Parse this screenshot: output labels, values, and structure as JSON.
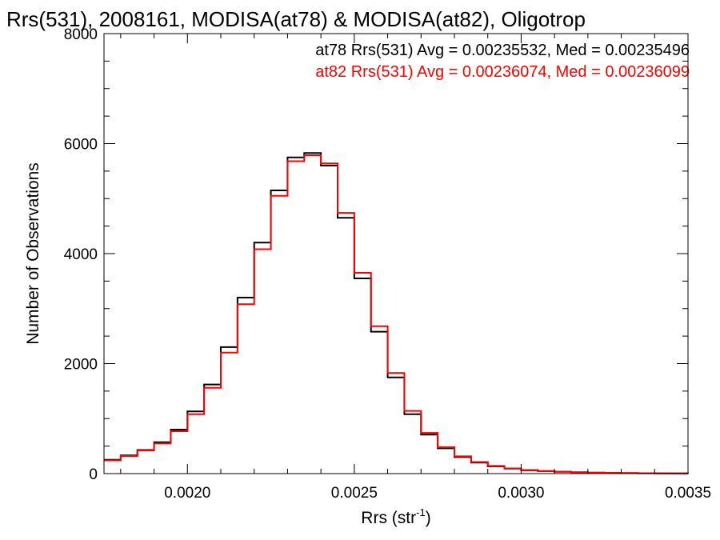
{
  "chart_data": {
    "type": "line",
    "title": "Rrs(531), 2008161, MODISA(at78) & MODISA(at82), Oligotrop",
    "xlabel": "Rrs (str",
    "xlabel_sup": "-1",
    "xlabel_close": ")",
    "ylabel": "Number of Observations",
    "xlim": [
      0.00175,
      0.0035
    ],
    "ylim": [
      0,
      8000
    ],
    "x_ticks": [
      0.002,
      0.0025,
      0.003,
      0.0035
    ],
    "x_tick_labels": [
      "0.0020",
      "0.0025",
      "0.0030",
      "0.0035"
    ],
    "y_ticks": [
      0,
      2000,
      4000,
      6000,
      8000
    ],
    "y_tick_labels": [
      "0",
      "2000",
      "4000",
      "6000",
      "8000"
    ],
    "grid": false,
    "legend_position": "top-right",
    "annotations": [
      {
        "text": "at78 Rrs(531) Avg = 0.00235532, Med = 0.00235496",
        "color": "#000000"
      },
      {
        "text": "at82 Rrs(531) Avg = 0.00236074, Med = 0.00236099",
        "color": "#ff0000"
      }
    ],
    "series": [
      {
        "color": "#000000",
        "x": [
          0.00175,
          0.0018,
          0.00185,
          0.0019,
          0.00195,
          0.002,
          0.00205,
          0.0021,
          0.00215,
          0.0022,
          0.00225,
          0.0023,
          0.00235,
          0.0024,
          0.00245,
          0.0025,
          0.00255,
          0.0026,
          0.00265,
          0.0027,
          0.00275,
          0.0028,
          0.00285,
          0.0029,
          0.00295,
          0.003,
          0.00305,
          0.0031,
          0.00315,
          0.0032,
          0.00325,
          0.0033,
          0.00335,
          0.0034,
          0.00345,
          0.0035
        ],
        "y": [
          250,
          330,
          430,
          570,
          800,
          1130,
          1620,
          2300,
          3200,
          4200,
          5150,
          5750,
          5830,
          5600,
          4650,
          3550,
          2580,
          1750,
          1080,
          710,
          460,
          300,
          200,
          130,
          90,
          60,
          45,
          32,
          24,
          17,
          12,
          9,
          6,
          4,
          3,
          2
        ]
      },
      {
        "color": "#ff0000",
        "x": [
          0.00175,
          0.0018,
          0.00185,
          0.0019,
          0.00195,
          0.002,
          0.00205,
          0.0021,
          0.00215,
          0.0022,
          0.00225,
          0.0023,
          0.00235,
          0.0024,
          0.00245,
          0.0025,
          0.00255,
          0.0026,
          0.00265,
          0.0027,
          0.00275,
          0.0028,
          0.00285,
          0.0029,
          0.00295,
          0.003,
          0.00305,
          0.0031,
          0.00315,
          0.0032,
          0.00325,
          0.0033,
          0.00335,
          0.0034,
          0.00345,
          0.0035
        ],
        "y": [
          240,
          320,
          420,
          550,
          770,
          1080,
          1560,
          2200,
          3080,
          4080,
          5050,
          5680,
          5790,
          5640,
          4740,
          3650,
          2680,
          1830,
          1140,
          740,
          480,
          315,
          210,
          140,
          95,
          65,
          48,
          34,
          26,
          18,
          13,
          10,
          7,
          5,
          3,
          2
        ]
      }
    ]
  }
}
